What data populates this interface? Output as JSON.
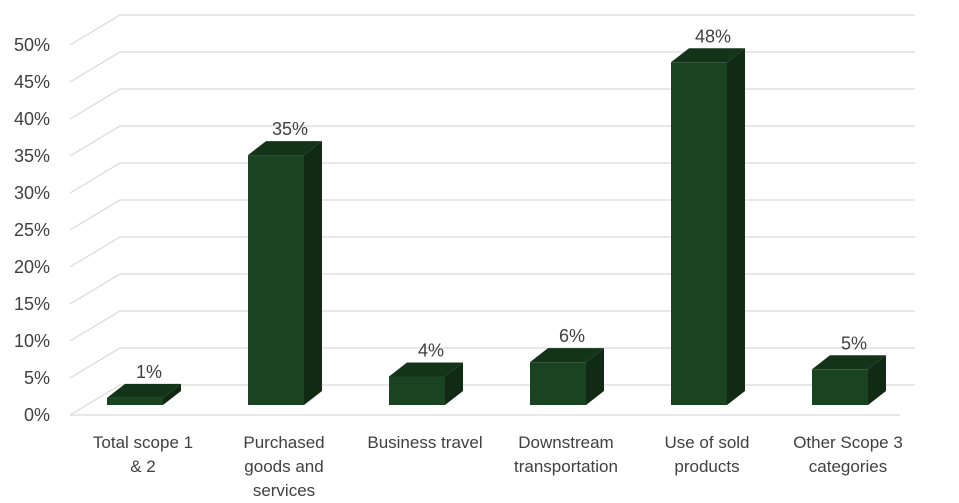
{
  "chart_data": {
    "type": "bar",
    "style": "3d-column",
    "categories": [
      [
        "Total scope 1",
        "& 2"
      ],
      [
        "Purchased",
        "goods and",
        "services"
      ],
      [
        "Business travel"
      ],
      [
        "Downstream",
        "transportation"
      ],
      [
        "Use of sold",
        "products"
      ],
      [
        "Other Scope 3",
        "categories"
      ]
    ],
    "values": [
      1,
      35,
      4,
      6,
      48,
      5
    ],
    "data_labels": [
      "1%",
      "35%",
      "4%",
      "6%",
      "48%",
      "5%"
    ],
    "y_ticks": [
      "0%",
      "5%",
      "10%",
      "15%",
      "20%",
      "25%",
      "30%",
      "35%",
      "40%",
      "45%",
      "50%"
    ],
    "ylim": [
      0,
      50
    ],
    "grid": true,
    "legend": false,
    "bar_color": "#1a4321",
    "title": "",
    "xlabel": "",
    "ylabel": ""
  }
}
